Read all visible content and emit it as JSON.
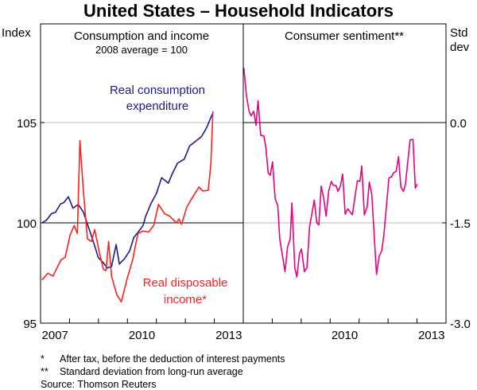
{
  "chart_data": [
    {
      "type": "line",
      "title": "United States – Household Indicators",
      "panel_title": "Consumption and income",
      "panel_subtitle": "2008 average = 100",
      "ylabel": "Index",
      "ylim": [
        95,
        110
      ],
      "yticks": [
        "95",
        "100",
        "105"
      ],
      "ytick_values": [
        95,
        100,
        105
      ],
      "xlim": [
        2007,
        2014
      ],
      "xtick_labels": [
        "2007",
        "2010",
        "2013"
      ],
      "xtick_label_years": [
        2007,
        2010,
        2013
      ],
      "reference_line": 100,
      "grid_line": 105,
      "series": [
        {
          "name": "Real consumption expenditure",
          "label_lines": [
            "Real consumption",
            "expenditure"
          ],
          "color": "#1c1a8c",
          "x": [
            2007.05,
            2007.2,
            2007.38,
            2007.52,
            2007.69,
            2007.8,
            2007.96,
            2008.12,
            2008.3,
            2008.48,
            2008.67,
            2008.85,
            2008.99,
            2009.17,
            2009.31,
            2009.45,
            2009.61,
            2009.72,
            2009.9,
            2010.08,
            2010.22,
            2010.4,
            2010.54,
            2010.63,
            2010.82,
            2011.0,
            2011.18,
            2011.41,
            2011.55,
            2011.73,
            2011.96,
            2012.15,
            2012.38,
            2012.56,
            2012.74,
            2012.93
          ],
          "y": [
            100.0,
            100.13,
            100.46,
            100.53,
            100.95,
            101.0,
            101.3,
            100.73,
            100.92,
            100.53,
            99.73,
            98.94,
            98.28,
            98.0,
            97.75,
            97.82,
            98.92,
            97.95,
            98.21,
            98.61,
            99.27,
            99.6,
            99.87,
            100.33,
            100.99,
            101.46,
            102.25,
            101.98,
            102.45,
            102.98,
            103.17,
            103.84,
            104.1,
            104.3,
            104.76,
            105.42
          ]
        },
        {
          "name": "Real disposable income*",
          "label_lines": [
            "Real disposable",
            "income*"
          ],
          "color": "#ff1f1f",
          "x": [
            2007.05,
            2007.25,
            2007.43,
            2007.7,
            2007.85,
            2008.02,
            2008.16,
            2008.27,
            2008.36,
            2008.48,
            2008.62,
            2008.76,
            2008.87,
            2009.03,
            2009.17,
            2009.26,
            2009.35,
            2009.45,
            2009.63,
            2009.79,
            2009.99,
            2010.18,
            2010.36,
            2010.54,
            2010.73,
            2010.91,
            2011.07,
            2011.28,
            2011.46,
            2011.69,
            2011.78,
            2011.87,
            2012.05,
            2012.24,
            2012.47,
            2012.6,
            2012.79,
            2012.88,
            2012.95
          ],
          "y": [
            97.15,
            97.49,
            97.35,
            98.15,
            98.28,
            99.4,
            99.87,
            99.47,
            104.1,
            101.59,
            99.2,
            99.07,
            99.67,
            98.54,
            97.68,
            97.62,
            99.07,
            97.35,
            96.43,
            96.06,
            97.22,
            98.15,
            99.47,
            99.6,
            99.54,
            99.87,
            100.92,
            100.46,
            100.33,
            100.0,
            100.2,
            99.93,
            100.79,
            101.26,
            101.79,
            101.59,
            101.62,
            102.91,
            105.56
          ]
        }
      ]
    },
    {
      "type": "line",
      "panel_title": "Consumer sentiment**",
      "ylabel": "Std dev",
      "ylabel_lines": [
        "Std",
        "dev"
      ],
      "ylim": [
        -3.0,
        1.5
      ],
      "yticks": [
        "0.0",
        "-1.5",
        "-3.0"
      ],
      "ytick_values": [
        0.0,
        -1.5,
        -3.0
      ],
      "xlim": [
        2007,
        2014
      ],
      "xtick_labels": [
        "2010",
        "2013"
      ],
      "xtick_label_years": [
        2010,
        2013
      ],
      "reference_line": 0.0,
      "grid_line": -1.5,
      "series": [
        {
          "name": "Consumer sentiment",
          "color": "#e8007f",
          "x": [
            2007.02,
            2007.11,
            2007.2,
            2007.27,
            2007.36,
            2007.44,
            2007.51,
            2007.6,
            2007.71,
            2007.78,
            2007.86,
            2007.93,
            2008.01,
            2008.1,
            2008.19,
            2008.26,
            2008.44,
            2008.53,
            2008.62,
            2008.68,
            2008.78,
            2008.85,
            2008.94,
            2009.01,
            2009.11,
            2009.2,
            2009.29,
            2009.45,
            2009.54,
            2009.61,
            2009.69,
            2009.78,
            2009.86,
            2009.95,
            2010.04,
            2010.11,
            2010.2,
            2010.27,
            2010.36,
            2010.43,
            2010.52,
            2010.61,
            2010.77,
            2010.86,
            2010.94,
            2011.03,
            2011.09,
            2011.18,
            2011.28,
            2011.35,
            2011.44,
            2011.6,
            2011.69,
            2011.78,
            2011.85,
            2012.03,
            2012.12,
            2012.19,
            2012.28,
            2012.36,
            2012.44,
            2012.53,
            2012.6,
            2012.76,
            2012.86,
            2012.94,
            2013.01
          ],
          "y": [
            0.82,
            0.4,
            0.17,
            0.1,
            0.17,
            -0.04,
            0.33,
            -0.19,
            -0.2,
            -0.37,
            -0.75,
            -0.79,
            -0.59,
            -1.14,
            -1.24,
            -1.74,
            -2.23,
            -1.86,
            -1.74,
            -1.2,
            -2.17,
            -2.31,
            -1.96,
            -1.89,
            -2.23,
            -2.17,
            -1.56,
            -1.16,
            -1.5,
            -1.53,
            -0.95,
            -1.14,
            -1.4,
            -1.02,
            -0.88,
            -0.94,
            -0.94,
            -1.03,
            -0.94,
            -0.77,
            -1.37,
            -1.29,
            -1.38,
            -1.1,
            -0.87,
            -0.88,
            -0.65,
            -1.38,
            -1.26,
            -0.89,
            -1.08,
            -2.27,
            -2.0,
            -1.92,
            -1.7,
            -0.83,
            -0.81,
            -0.75,
            -0.73,
            -0.51,
            -0.96,
            -1.03,
            -0.92,
            -0.26,
            -0.25,
            -0.98,
            -0.92
          ]
        }
      ]
    }
  ],
  "footnotes": [
    {
      "marker": "*",
      "text": "After tax, before the deduction of interest payments"
    },
    {
      "marker": "**",
      "text": "Standard deviation from long-run average"
    }
  ],
  "source": "Source: Thomson Reuters"
}
